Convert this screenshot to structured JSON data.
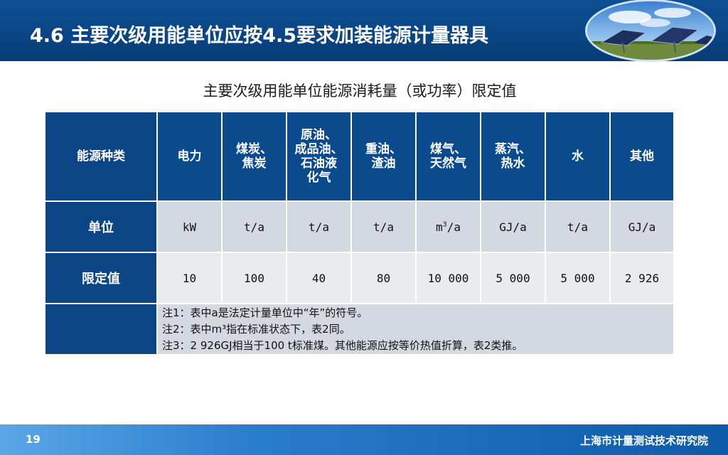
{
  "header": {
    "title": "4.6 主要次级用能单位应按4.5要求加装能源计量器具"
  },
  "table": {
    "caption": "主要次级用能单位能源消耗量（或功率）限定值",
    "columns": [
      {
        "label": "能源种类",
        "lines": [
          "能源种类"
        ]
      },
      {
        "label": "电力",
        "lines": [
          "电力"
        ]
      },
      {
        "label": "煤炭、焦炭",
        "lines": [
          "煤炭、",
          "焦炭"
        ]
      },
      {
        "label": "原油、成品油、石油液化气",
        "lines": [
          "原油、",
          "成品油、",
          "石油液",
          "化气"
        ]
      },
      {
        "label": "重油、渣油",
        "lines": [
          "重油、",
          "渣油"
        ]
      },
      {
        "label": "煤气、天然气",
        "lines": [
          "煤气、",
          "天然气"
        ]
      },
      {
        "label": "蒸汽、热水",
        "lines": [
          "蒸汽、",
          "热水"
        ]
      },
      {
        "label": "水",
        "lines": [
          "水"
        ]
      },
      {
        "label": "其他",
        "lines": [
          "其他"
        ]
      }
    ],
    "unit_row": {
      "label": "单位",
      "values": [
        "kW",
        "t/a",
        "t/a",
        "t/a",
        "m3/a",
        "GJ/a",
        "t/a",
        "GJ/a"
      ]
    },
    "limit_row": {
      "label": "限定值",
      "values": [
        "10",
        "100",
        "40",
        "80",
        "10 000",
        "5 000",
        "5 000",
        "2 926"
      ]
    },
    "notes": [
      "注1：表中a是法定计量单位中“年”的符号。",
      "注2：表中m³指在标准状态下，表2同。",
      "注3：2 926GJ相当于100 t标准煤。其他能源应按等价热值折算，表2类推。"
    ]
  },
  "footer": {
    "page_number": "19",
    "organization": "上海市计量测试技术研究院"
  }
}
